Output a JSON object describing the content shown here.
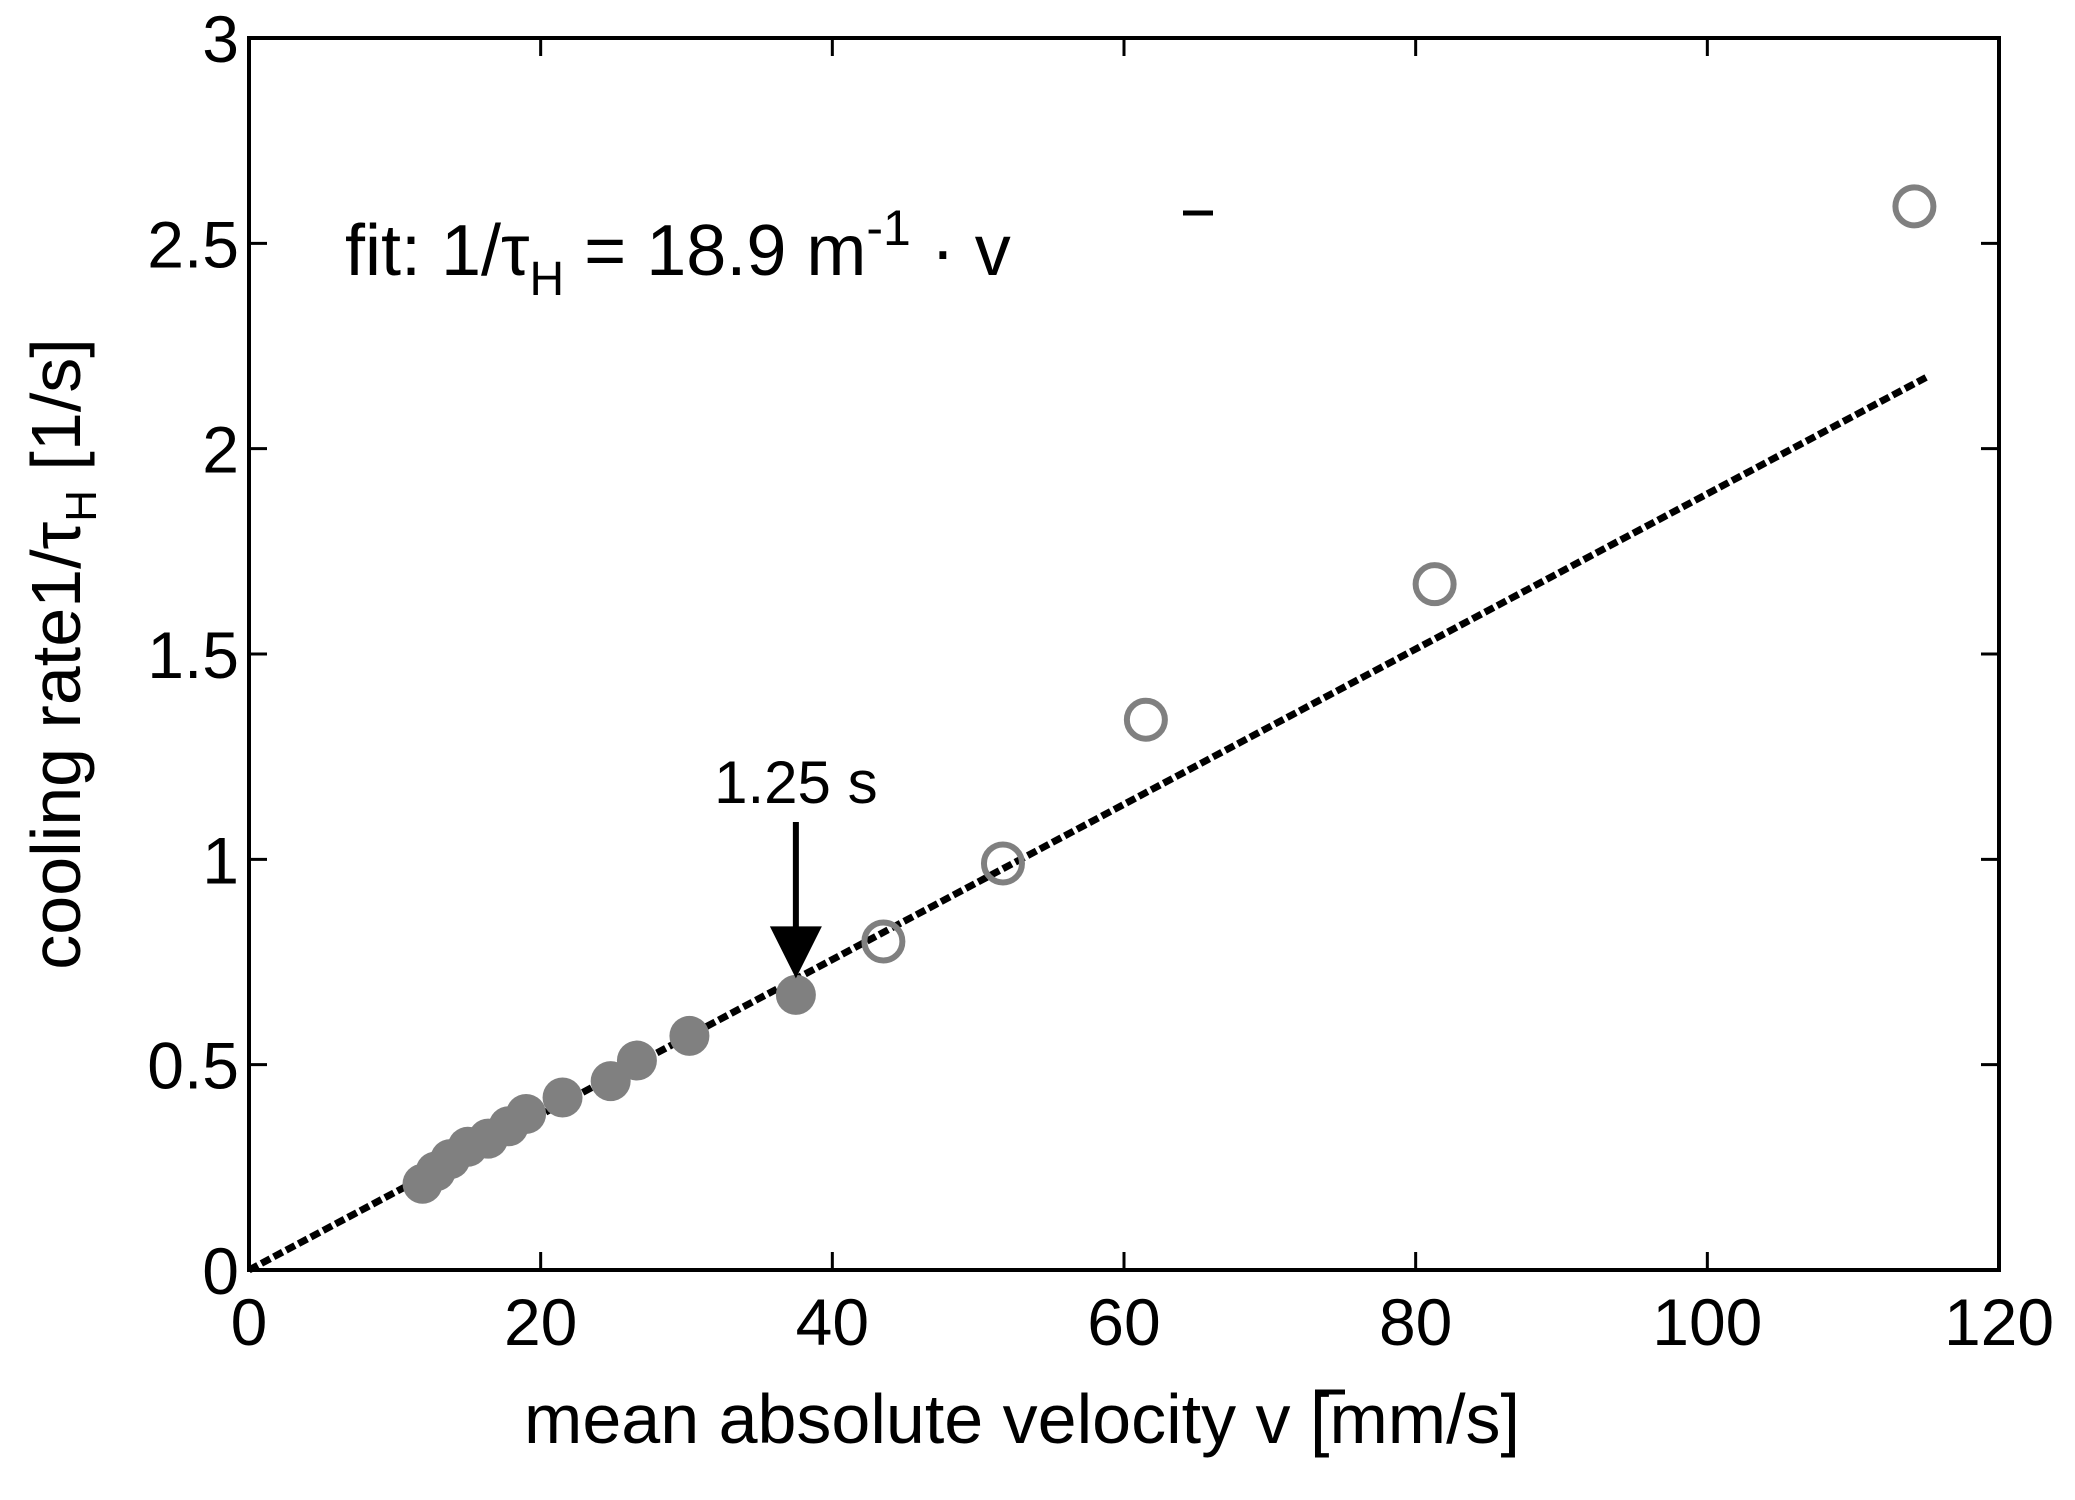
{
  "chart_data": {
    "type": "scatter",
    "xlabel": "mean absolute velocity",
    "xlabel_symbol": "v",
    "xlabel_unit": "[mm/s]",
    "ylabel": "cooling rate",
    "ylabel_symbol_main": "1/τ",
    "ylabel_symbol_sub": "H",
    "ylabel_unit": "[1/s]",
    "xlim": [
      0,
      120
    ],
    "ylim": [
      0,
      3
    ],
    "xticks": [
      0,
      20,
      40,
      60,
      80,
      100,
      120
    ],
    "yticks": [
      0,
      0.5,
      1,
      1.5,
      2,
      2.5,
      3
    ],
    "xtick_labels": [
      "0",
      "20",
      "40",
      "60",
      "80",
      "100",
      "120"
    ],
    "ytick_labels": [
      "0",
      "0.5",
      "1",
      "1.5",
      "2",
      "2.5",
      "3"
    ],
    "grid": false,
    "series": [
      {
        "name": "filled",
        "marker": "filled-circle",
        "color": "#808080",
        "x": [
          11.9,
          12.8,
          13.8,
          15.0,
          16.4,
          17.8,
          19.0,
          21.5,
          24.8,
          26.6,
          30.2,
          37.5
        ],
        "y": [
          0.21,
          0.24,
          0.27,
          0.3,
          0.32,
          0.35,
          0.38,
          0.42,
          0.46,
          0.51,
          0.57,
          0.67
        ]
      },
      {
        "name": "open",
        "marker": "open-circle",
        "color": "#808080",
        "x": [
          43.5,
          51.7,
          61.5,
          81.3,
          114.2
        ],
        "y": [
          0.8,
          0.99,
          1.34,
          1.67,
          2.59
        ]
      }
    ],
    "fit": {
      "style": "dashed",
      "color": "#000000",
      "slope": 0.0189,
      "x_range": [
        0,
        115
      ]
    },
    "annotations": {
      "fit_text_prefix": "fit: 1/τ",
      "fit_text_sub": "H",
      "fit_text_mid": " = 18.9 m",
      "fit_text_sup": "-1",
      "fit_text_dot": " · ",
      "fit_text_var": "v",
      "arrow_label": "1.25 s",
      "arrow_x": 37.5,
      "arrow_y": 0.71
    }
  }
}
